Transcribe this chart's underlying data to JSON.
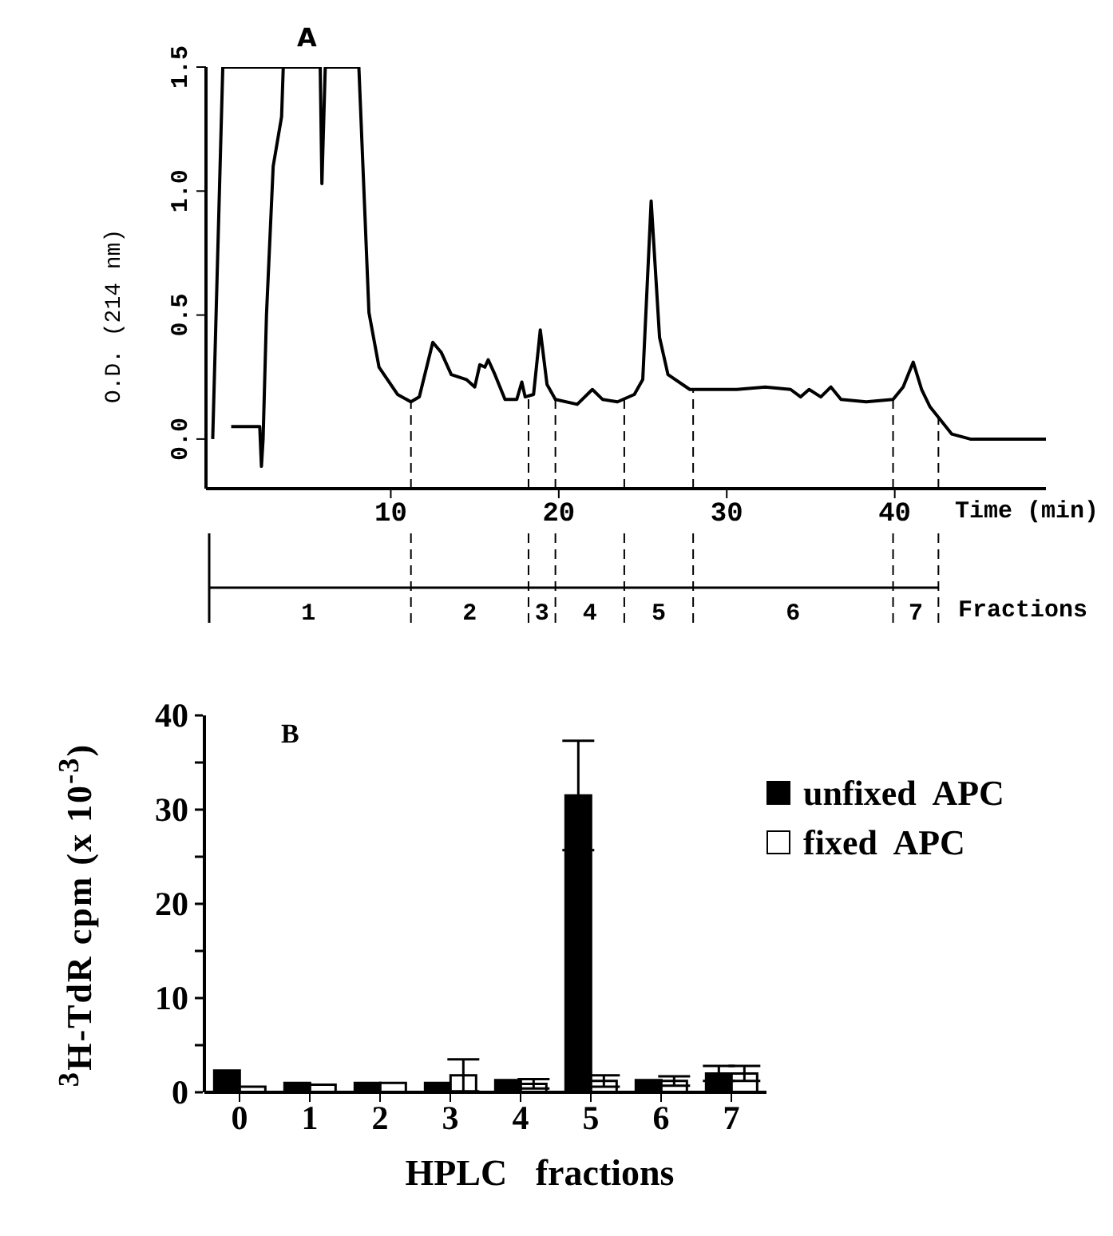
{
  "chart_data": [
    {
      "type": "line",
      "title": "A",
      "xlabel": "Time (min)",
      "ylabel": "O.D. (214 nm)",
      "xlim": [
        -1,
        49
      ],
      "xticks": [
        10,
        20,
        30,
        40
      ],
      "ylim": [
        -0.2,
        1.5
      ],
      "yticks": [
        {
          "value": 0,
          "label": "0.0"
        },
        0.5,
        {
          "value": 1,
          "label": "1.0"
        },
        1.5
      ],
      "marker": "none",
      "line_style": "solid",
      "legend": false,
      "grid": false,
      "series": [
        {
          "color": "#000000",
          "x": [
            0.5,
            2.2,
            2.3,
            2.4,
            2.6,
            3.0,
            3.5,
            3.6,
            5.8,
            5.9,
            6.1,
            8.1,
            8.7,
            9.3,
            10.4,
            11.2,
            11.7,
            12.5,
            13.0,
            13.6,
            14.5,
            15.0,
            15.3,
            15.6,
            15.8,
            16.2,
            16.8,
            17.5,
            17.8,
            18.0,
            18.5,
            18.9,
            19.3,
            19.8,
            21.1,
            22.0,
            22.6,
            23.5,
            24.5,
            25.0,
            25.5,
            26.0,
            26.5,
            27.8,
            30.6,
            32.3,
            33.8,
            34.4,
            34.9,
            35.6,
            36.2,
            36.8,
            38.3,
            39.9,
            40.5,
            41.1,
            41.6,
            42.1,
            43.4,
            44.5,
            49.0
          ],
          "values": [
            0.05,
            0.05,
            -0.11,
            0,
            0.5,
            1.1,
            1.3,
            1.5,
            1.5,
            1.03,
            1.5,
            1.5,
            0.51,
            0.29,
            0.18,
            0.15,
            0.17,
            0.39,
            0.35,
            0.26,
            0.24,
            0.21,
            0.3,
            0.29,
            0.32,
            0.26,
            0.16,
            0.16,
            0.23,
            0.17,
            0.18,
            0.44,
            0.22,
            0.16,
            0.14,
            0.2,
            0.16,
            0.15,
            0.18,
            0.24,
            0.96,
            0.41,
            0.26,
            0.2,
            0.2,
            0.21,
            0.2,
            0.17,
            0.2,
            0.17,
            0.21,
            0.16,
            0.15,
            0.16,
            0.21,
            0.31,
            0.2,
            0.13,
            0.02,
            0,
            0
          ]
        },
        {
          "color": "#000000",
          "x": [
            -0.6,
            0,
            3.6
          ],
          "values": [
            0,
            1.5,
            1.5
          ]
        }
      ],
      "ref_lines": [
        {
          "axis": "x",
          "value": 11.2,
          "line_style": "dashed"
        },
        {
          "axis": "x",
          "value": 18.2,
          "line_style": "dashed"
        },
        {
          "axis": "x",
          "value": 19.8,
          "line_style": "dashed"
        },
        {
          "axis": "x",
          "value": 23.9,
          "line_style": "dashed"
        },
        {
          "axis": "x",
          "value": 28.0,
          "line_style": "dashed"
        },
        {
          "axis": "x",
          "value": 39.9,
          "line_style": "dashed"
        },
        {
          "axis": "x",
          "value": 42.6,
          "line_style": "dashed"
        }
      ],
      "annotations": [
        "1",
        "2",
        "3",
        "4",
        "5",
        "6",
        "7",
        "Fractions"
      ]
    },
    {
      "type": "bar",
      "title": "B",
      "xlabel": "HPLC fractions",
      "ylabel": "$^{3}$H-TdR cpm (x 10$^{-3}$)",
      "categories": [
        "0",
        "1",
        "2",
        "3",
        "4",
        "5",
        "6",
        "7"
      ],
      "ylim": [
        0,
        40
      ],
      "yticks": [
        0,
        {
          "value": 5,
          "label": null
        },
        10,
        {
          "value": 15,
          "label": null
        },
        20,
        {
          "value": 25,
          "label": null
        },
        30,
        {
          "value": 35,
          "label": null
        },
        40
      ],
      "legend": "right",
      "grid": false,
      "series": [
        {
          "name": "unfixed  APC",
          "color": "#000000",
          "values": [
            2.3,
            1.0,
            1.0,
            1.0,
            1.3,
            31.5,
            1.3,
            2.0
          ],
          "errors": [
            null,
            null,
            null,
            null,
            null,
            5.8,
            null,
            0.8
          ]
        },
        {
          "name": "fixed  APC",
          "color": "#ffffff",
          "values": [
            0.6,
            0.8,
            1.0,
            1.8,
            0.9,
            1.2,
            1.2,
            2.0
          ],
          "errors": [
            null,
            null,
            null,
            1.7,
            0.5,
            0.6,
            0.5,
            0.8
          ]
        }
      ]
    }
  ]
}
